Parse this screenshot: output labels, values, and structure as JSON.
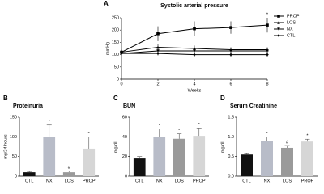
{
  "chart_data": [
    {
      "type": "line",
      "panel": "A",
      "title": "Systolic arterial pressure",
      "x_label": "Weeks",
      "y_label": "mmHg",
      "x": [
        0,
        2,
        4,
        6,
        8
      ],
      "xlim": [
        0,
        8
      ],
      "xticks": [
        0,
        2,
        4,
        6,
        8
      ],
      "ylim": [
        0,
        250
      ],
      "yticks": [
        0,
        50,
        100,
        150,
        200,
        250
      ],
      "series": [
        {
          "name": "PROP",
          "color": "#000000",
          "marker": "square",
          "values": [
            110,
            185,
            205,
            210,
            220
          ],
          "errors": [
            10,
            30,
            30,
            25,
            30
          ],
          "annotation": "*"
        },
        {
          "name": "LOS",
          "color": "#000000",
          "marker": "triangle",
          "values": [
            110,
            130,
            125,
            120,
            120
          ],
          "errors": [
            8,
            12,
            12,
            10,
            10
          ]
        },
        {
          "name": "NX",
          "color": "#000000",
          "marker": "triangle-down",
          "values": [
            105,
            115,
            115,
            115,
            115
          ],
          "errors": [
            8,
            10,
            10,
            10,
            10
          ]
        },
        {
          "name": "CTL",
          "color": "#000000",
          "marker": "diamond",
          "values": [
            105,
            105,
            100,
            100,
            100
          ],
          "errors": [
            6,
            8,
            8,
            8,
            8
          ]
        }
      ],
      "legend": "right"
    },
    {
      "type": "bar",
      "panel": "B",
      "title": "Proteinuria",
      "y_label": "mg/24 hours",
      "categories": [
        "CTL",
        "NX",
        "LOS",
        "PROP"
      ],
      "values": [
        10,
        100,
        10,
        70
      ],
      "errors": [
        2,
        30,
        3,
        30
      ],
      "colors": [
        "#111111",
        "#b8bcc8",
        "#9a9a9a",
        "#d6d6d6"
      ],
      "markers": [
        null,
        "*",
        "#",
        "*"
      ],
      "ylim": [
        0,
        150
      ],
      "yticks": [
        0,
        50,
        100,
        150
      ]
    },
    {
      "type": "bar",
      "panel": "C",
      "title": "BUN",
      "y_label": "mg/dL",
      "categories": [
        "CTL",
        "NX",
        "LOS",
        "PROP"
      ],
      "values": [
        18,
        40,
        38,
        41
      ],
      "errors": [
        2,
        8,
        5,
        8
      ],
      "colors": [
        "#111111",
        "#b8bcc8",
        "#9a9a9a",
        "#d6d6d6"
      ],
      "markers": [
        null,
        "*",
        "*",
        "*"
      ],
      "ylim": [
        0,
        60
      ],
      "yticks": [
        0,
        20,
        40,
        60
      ]
    },
    {
      "type": "bar",
      "panel": "D",
      "title": "Serum Creatinine",
      "y_label": "mg/dL",
      "categories": [
        "CTL",
        "NX",
        "LOS",
        "PROP"
      ],
      "values": [
        0.55,
        0.9,
        0.72,
        0.88
      ],
      "errors": [
        0.04,
        0.1,
        0.06,
        0.06
      ],
      "colors": [
        "#111111",
        "#b8bcc8",
        "#9a9a9a",
        "#d6d6d6"
      ],
      "markers": [
        null,
        "*",
        "#",
        "*"
      ],
      "ylim": [
        0,
        1.5
      ],
      "yticks": [
        {
          "value": 0,
          "label": "0.0"
        },
        0.5,
        {
          "value": 1,
          "label": "1.0"
        },
        1.5
      ]
    }
  ]
}
